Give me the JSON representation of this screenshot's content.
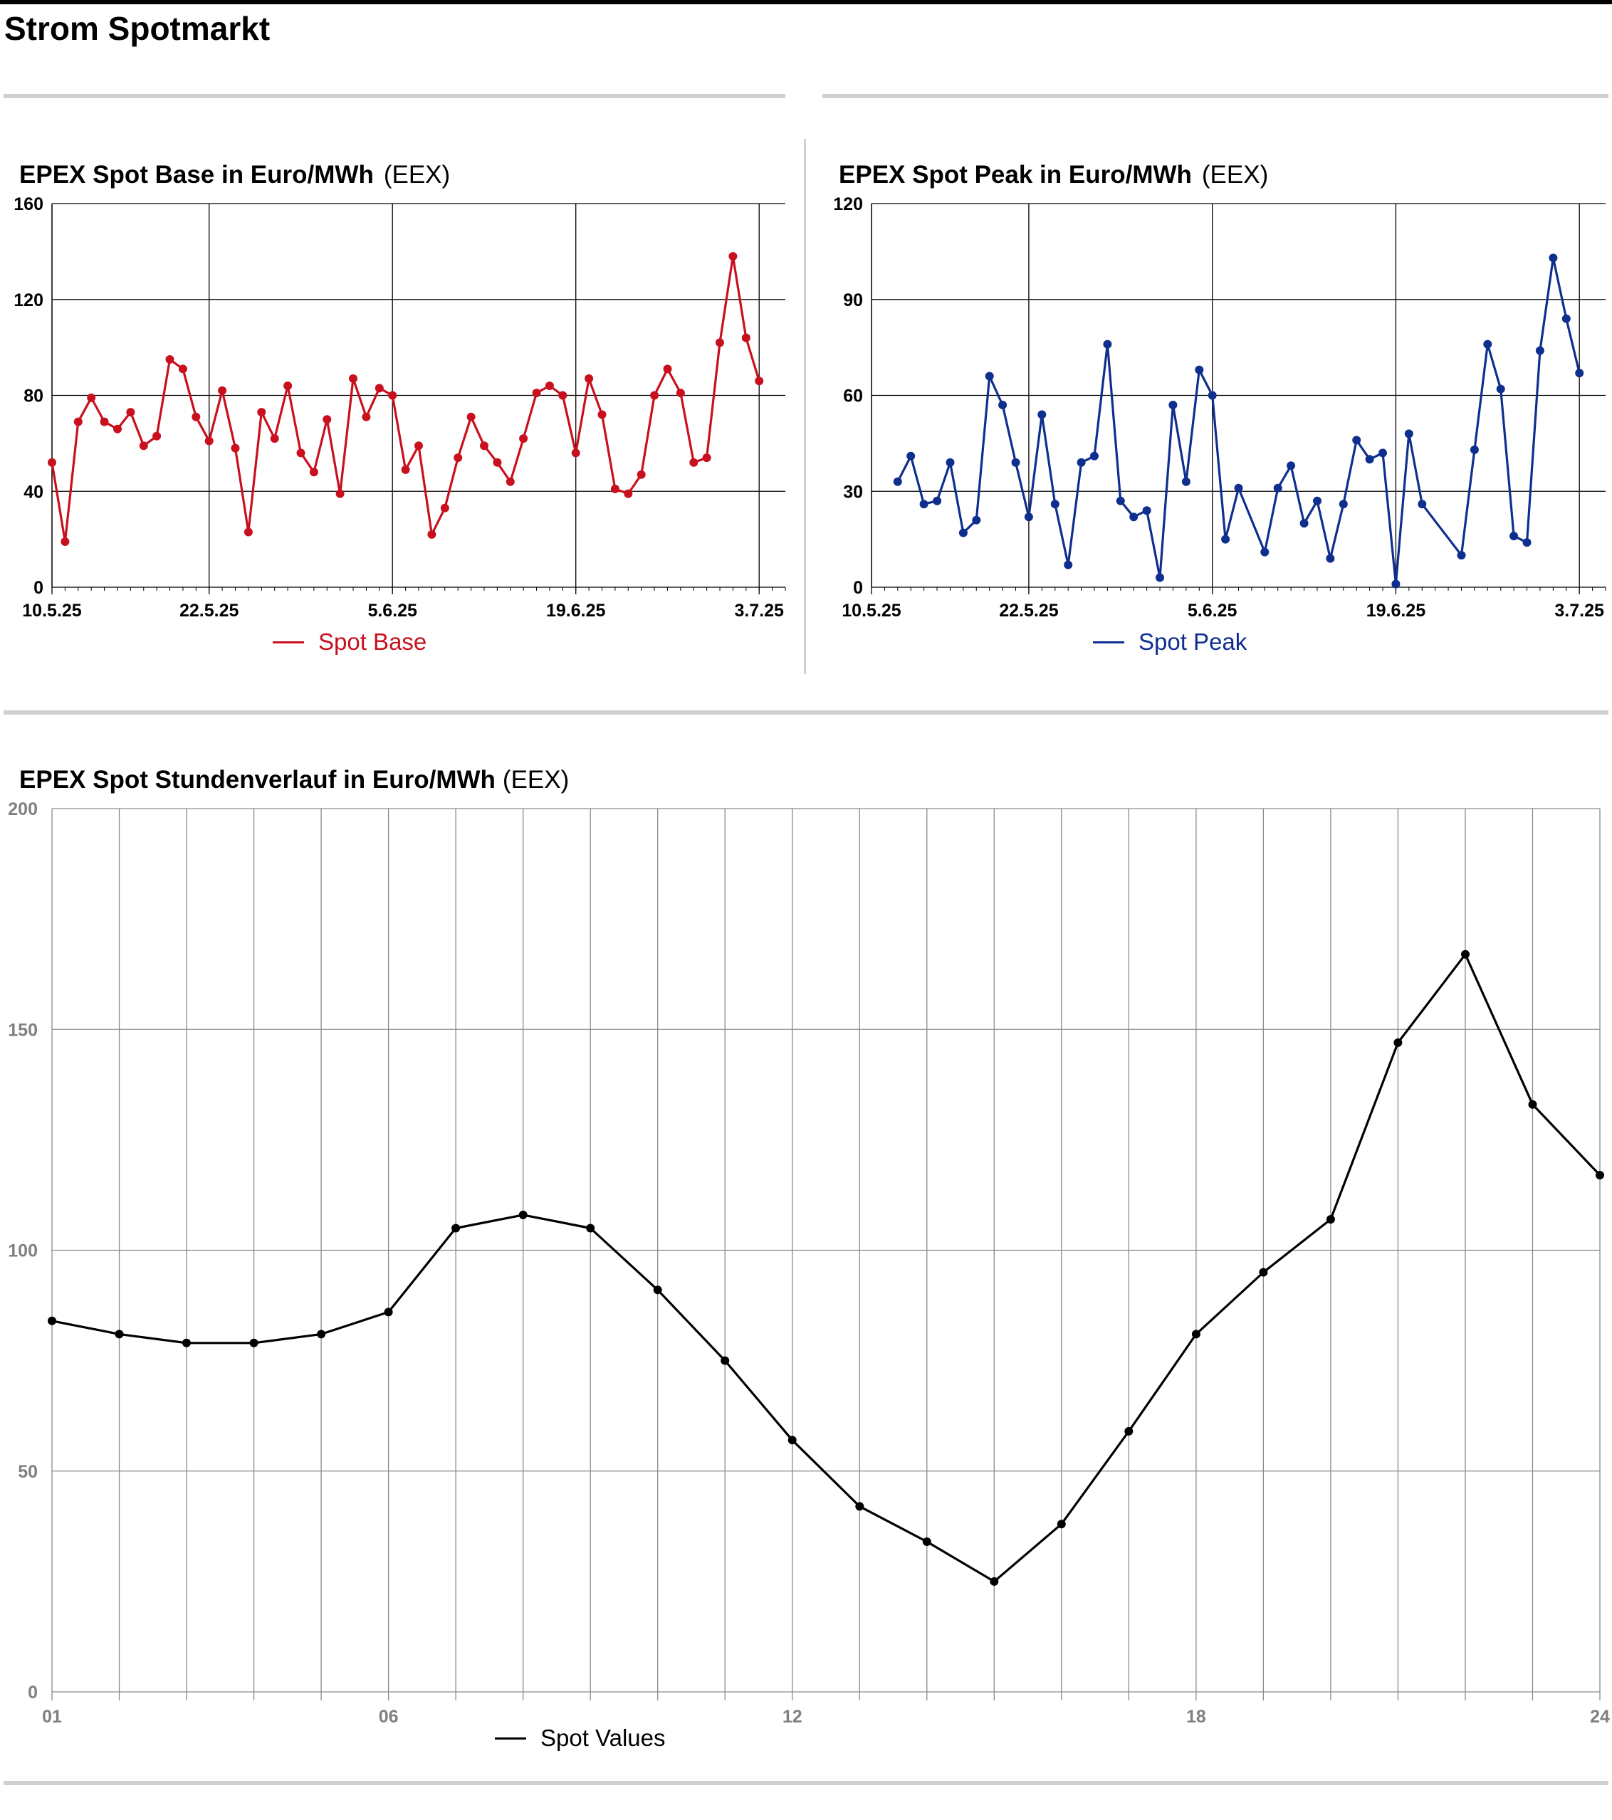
{
  "page": {
    "title": "Strom Spotmarkt"
  },
  "colors": {
    "base": "#c8101e",
    "peak": "#0f2f8f",
    "hourly": "#000000",
    "grid_dark": "#000000",
    "grid_light": "#8a8a8a",
    "divider": "#d0d0d0"
  },
  "charts": {
    "base": {
      "title": "EPEX Spot Base in Euro/MWh",
      "source": "(EEX)",
      "legend": "Spot Base"
    },
    "peak": {
      "title": "EPEX Spot Peak in Euro/MWh",
      "source": "(EEX)",
      "legend": "Spot Peak"
    },
    "hourly": {
      "title": "EPEX Spot Stundenverlauf in Euro/MWh",
      "source": "(EEX)",
      "legend": "Spot Values"
    }
  },
  "chart_data": [
    {
      "id": "base",
      "type": "line",
      "title": "EPEX Spot Base in Euro/MWh",
      "x_start": "10.5.25",
      "x_end": "5.7.25",
      "x_ticks": [
        "10.5.25",
        "22.5.25",
        "5.6.25",
        "19.6.25",
        "3.7.25"
      ],
      "y_ticks": [
        0,
        40,
        80,
        120,
        160
      ],
      "ylim": [
        0,
        160
      ],
      "grid": true,
      "legend_position": "bottom-center",
      "series": [
        {
          "name": "Spot Base",
          "points": [
            [
              "10.5.25",
              52
            ],
            [
              "11.5.25",
              19
            ],
            [
              "12.5.25",
              69
            ],
            [
              "13.5.25",
              79
            ],
            [
              "14.5.25",
              69
            ],
            [
              "15.5.25",
              66
            ],
            [
              "16.5.25",
              73
            ],
            [
              "17.5.25",
              59
            ],
            [
              "18.5.25",
              63
            ],
            [
              "19.5.25",
              95
            ],
            [
              "20.5.25",
              91
            ],
            [
              "21.5.25",
              71
            ],
            [
              "22.5.25",
              61
            ],
            [
              "23.5.25",
              82
            ],
            [
              "24.5.25",
              58
            ],
            [
              "25.5.25",
              23
            ],
            [
              "26.5.25",
              73
            ],
            [
              "27.5.25",
              62
            ],
            [
              "28.5.25",
              84
            ],
            [
              "29.5.25",
              56
            ],
            [
              "30.5.25",
              48
            ],
            [
              "31.5.25",
              70
            ],
            [
              "1.6.25",
              39
            ],
            [
              "2.6.25",
              87
            ],
            [
              "3.6.25",
              71
            ],
            [
              "4.6.25",
              83
            ],
            [
              "5.6.25",
              80
            ],
            [
              "6.6.25",
              49
            ],
            [
              "7.6.25",
              59
            ],
            [
              "8.6.25",
              22
            ],
            [
              "9.6.25",
              33
            ],
            [
              "10.6.25",
              54
            ],
            [
              "11.6.25",
              71
            ],
            [
              "12.6.25",
              59
            ],
            [
              "13.6.25",
              52
            ],
            [
              "14.6.25",
              44
            ],
            [
              "15.6.25",
              62
            ],
            [
              "16.6.25",
              81
            ],
            [
              "17.6.25",
              84
            ],
            [
              "18.6.25",
              80
            ],
            [
              "19.6.25",
              56
            ],
            [
              "20.6.25",
              87
            ],
            [
              "21.6.25",
              72
            ],
            [
              "22.6.25",
              41
            ],
            [
              "23.6.25",
              39
            ],
            [
              "24.6.25",
              47
            ],
            [
              "25.6.25",
              80
            ],
            [
              "26.6.25",
              91
            ],
            [
              "27.6.25",
              81
            ],
            [
              "28.6.25",
              52
            ],
            [
              "29.6.25",
              54
            ],
            [
              "30.6.25",
              102
            ],
            [
              "1.7.25",
              138
            ],
            [
              "2.7.25",
              104
            ],
            [
              "3.7.25",
              86
            ]
          ]
        }
      ]
    },
    {
      "id": "peak",
      "type": "line",
      "title": "EPEX Spot Peak in Euro/MWh",
      "x_start": "10.5.25",
      "x_end": "5.7.25",
      "x_ticks": [
        "10.5.25",
        "22.5.25",
        "5.6.25",
        "19.6.25",
        "3.7.25"
      ],
      "y_ticks": [
        0,
        30,
        60,
        90,
        120
      ],
      "ylim": [
        0,
        120
      ],
      "grid": true,
      "legend_position": "bottom-center",
      "series": [
        {
          "name": "Spot Peak",
          "points": [
            [
              "12.5.25",
              33
            ],
            [
              "13.5.25",
              41
            ],
            [
              "14.5.25",
              26
            ],
            [
              "15.5.25",
              27
            ],
            [
              "16.5.25",
              39
            ],
            [
              "17.5.25",
              17
            ],
            [
              "18.5.25",
              21
            ],
            [
              "19.5.25",
              66
            ],
            [
              "20.5.25",
              57
            ],
            [
              "21.5.25",
              39
            ],
            [
              "22.5.25",
              22
            ],
            [
              "23.5.25",
              54
            ],
            [
              "24.5.25",
              26
            ],
            [
              "25.5.25",
              7
            ],
            [
              "26.5.25",
              39
            ],
            [
              "27.5.25",
              41
            ],
            [
              "28.5.25",
              76
            ],
            [
              "29.5.25",
              27
            ],
            [
              "30.5.25",
              22
            ],
            [
              "31.5.25",
              24
            ],
            [
              "1.6.25",
              3
            ],
            [
              "2.6.25",
              57
            ],
            [
              "3.6.25",
              33
            ],
            [
              "4.6.25",
              68
            ],
            [
              "5.6.25",
              60
            ],
            [
              "6.6.25",
              15
            ],
            [
              "7.6.25",
              31
            ],
            [
              "9.6.25",
              11
            ],
            [
              "10.6.25",
              31
            ],
            [
              "11.6.25",
              38
            ],
            [
              "12.6.25",
              20
            ],
            [
              "13.6.25",
              27
            ],
            [
              "14.6.25",
              9
            ],
            [
              "15.6.25",
              26
            ],
            [
              "16.6.25",
              46
            ],
            [
              "17.6.25",
              40
            ],
            [
              "18.6.25",
              42
            ],
            [
              "19.6.25",
              1
            ],
            [
              "20.6.25",
              48
            ],
            [
              "21.6.25",
              26
            ],
            [
              "24.6.25",
              10
            ],
            [
              "25.6.25",
              43
            ],
            [
              "26.6.25",
              76
            ],
            [
              "27.6.25",
              62
            ],
            [
              "28.6.25",
              16
            ],
            [
              "29.6.25",
              14
            ],
            [
              "30.6.25",
              74
            ],
            [
              "1.7.25",
              103
            ],
            [
              "2.7.25",
              84
            ],
            [
              "3.7.25",
              67
            ]
          ]
        }
      ]
    },
    {
      "id": "hourly",
      "type": "line",
      "title": "EPEX Spot Stundenverlauf in Euro/MWh",
      "x": [
        1,
        2,
        3,
        4,
        5,
        6,
        7,
        8,
        9,
        10,
        11,
        12,
        13,
        14,
        15,
        16,
        17,
        18,
        19,
        20,
        21,
        22,
        23,
        24
      ],
      "x_ticks": [
        "01",
        "06",
        "12",
        "18",
        "24"
      ],
      "y_ticks": [
        0,
        50,
        100,
        150,
        200
      ],
      "ylim": [
        0,
        200
      ],
      "xlim": [
        1,
        24
      ],
      "grid": true,
      "legend_position": "bottom-center",
      "series": [
        {
          "name": "Spot Values",
          "values": [
            84,
            81,
            79,
            79,
            81,
            86,
            105,
            108,
            105,
            91,
            75,
            57,
            42,
            34,
            25,
            38,
            59,
            81,
            95,
            107,
            147,
            167,
            133,
            117
          ]
        }
      ]
    }
  ]
}
